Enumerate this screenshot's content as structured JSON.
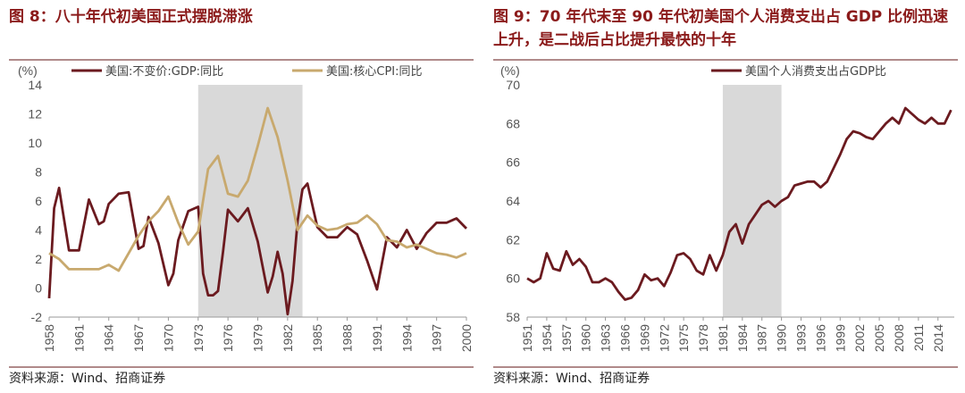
{
  "left": {
    "title": "图 8：八十年代初美国正式摆脱滞涨",
    "source": "资料来源：Wind、招商证券"
  },
  "right": {
    "title": "图 9：70 年代末至 90 年代初美国个人消费支出占 GDP 比例迅速上升，是二战后占比提升最快的十年",
    "source": "资料来源：Wind、招商证券"
  },
  "chart_data": [
    {
      "type": "line",
      "unit_label": "(%)",
      "ylim": [
        -2,
        14
      ],
      "yticks": [
        -2,
        0,
        2,
        4,
        6,
        8,
        10,
        12,
        14
      ],
      "xlim": [
        1958,
        2000
      ],
      "xticks": [
        "1958",
        "1961",
        "1964",
        "1967",
        "1970",
        "1973",
        "1976",
        "1979",
        "1982",
        "1985",
        "1988",
        "1991",
        "1994",
        "1997",
        "2000"
      ],
      "shaded_range": [
        1973,
        1983.5
      ],
      "legend_position": "top",
      "series": [
        {
          "name": "美国:不变价:GDP:同比",
          "color": "#6b1a1f",
          "x": [
            1958,
            1958.5,
            1959,
            1960,
            1960.5,
            1961,
            1962,
            1963,
            1963.5,
            1964,
            1965,
            1966,
            1967,
            1967.5,
            1968,
            1969,
            1970,
            1970.5,
            1971,
            1972,
            1973,
            1973.5,
            1974,
            1974.5,
            1975,
            1975.5,
            1976,
            1977,
            1978,
            1979,
            1980,
            1980.5,
            1981,
            1981.5,
            1982,
            1982.5,
            1983,
            1983.5,
            1984,
            1985,
            1986,
            1987,
            1988,
            1989,
            1990,
            1991,
            1992,
            1993,
            1994,
            1995,
            1996,
            1997,
            1998,
            1999,
            2000
          ],
          "y": [
            -0.7,
            5.5,
            6.9,
            2.6,
            2.6,
            2.6,
            6.1,
            4.4,
            4.6,
            5.8,
            6.5,
            6.6,
            2.7,
            2.9,
            4.9,
            3.1,
            0.2,
            1.0,
            3.3,
            5.3,
            5.6,
            1.0,
            -0.5,
            -0.5,
            -0.2,
            2.5,
            5.4,
            4.6,
            5.5,
            3.2,
            -0.3,
            0.8,
            2.5,
            1.0,
            -1.8,
            0.5,
            4.6,
            6.8,
            7.2,
            4.2,
            3.5,
            3.5,
            4.2,
            3.7,
            1.9,
            -0.1,
            3.5,
            2.8,
            4.0,
            2.7,
            3.8,
            4.5,
            4.5,
            4.8,
            4.1
          ]
        },
        {
          "name": "美国:核心CPI:同比",
          "color": "#c8a96e",
          "x": [
            1958,
            1959,
            1960,
            1961,
            1962,
            1963,
            1964,
            1965,
            1966,
            1967,
            1968,
            1969,
            1970,
            1971,
            1972,
            1973,
            1974,
            1975,
            1976,
            1977,
            1978,
            1979,
            1980,
            1981,
            1982,
            1983,
            1984,
            1985,
            1986,
            1987,
            1988,
            1989,
            1990,
            1991,
            1992,
            1993,
            1994,
            1995,
            1996,
            1997,
            1998,
            1999,
            2000
          ],
          "y": [
            2.4,
            2.0,
            1.3,
            1.3,
            1.3,
            1.3,
            1.6,
            1.2,
            2.4,
            3.6,
            4.6,
            5.3,
            6.3,
            4.5,
            3.0,
            3.9,
            8.2,
            9.1,
            6.5,
            6.3,
            7.4,
            9.8,
            12.4,
            10.4,
            7.4,
            4.0,
            5.0,
            4.3,
            4.0,
            4.1,
            4.4,
            4.5,
            5.0,
            4.4,
            3.3,
            3.2,
            2.8,
            3.0,
            2.7,
            2.4,
            2.3,
            2.1,
            2.4
          ]
        }
      ]
    },
    {
      "type": "line",
      "unit_label": "(%)",
      "ylim": [
        58,
        70
      ],
      "yticks": [
        58,
        60,
        62,
        64,
        66,
        68,
        70
      ],
      "xlim": [
        1951,
        2016.5
      ],
      "xticks": [
        "1951",
        "1954",
        "1957",
        "1960",
        "1963",
        "1966",
        "1969",
        "1972",
        "1975",
        "1978",
        "1981",
        "1984",
        "1987",
        "1990",
        "1993",
        "1996",
        "1999",
        "2002",
        "2005",
        "2008",
        "2011",
        "2014"
      ],
      "shaded_range": [
        1981,
        1990
      ],
      "legend_position": "top",
      "series": [
        {
          "name": "美国个人消费支出占GDP比",
          "color": "#6b1a1f",
          "x": [
            1951,
            1952,
            1953,
            1954,
            1955,
            1956,
            1957,
            1958,
            1959,
            1960,
            1961,
            1962,
            1963,
            1964,
            1965,
            1966,
            1967,
            1968,
            1969,
            1970,
            1971,
            1972,
            1973,
            1974,
            1975,
            1976,
            1977,
            1978,
            1979,
            1980,
            1981,
            1982,
            1983,
            1984,
            1985,
            1986,
            1987,
            1988,
            1989,
            1990,
            1991,
            1992,
            1993,
            1994,
            1995,
            1996,
            1997,
            1998,
            1999,
            2000,
            2001,
            2002,
            2003,
            2004,
            2005,
            2006,
            2007,
            2008,
            2009,
            2010,
            2011,
            2012,
            2013,
            2014,
            2015,
            2016
          ],
          "y": [
            60.0,
            59.8,
            60.0,
            61.3,
            60.5,
            60.4,
            61.4,
            60.7,
            61.0,
            60.6,
            59.8,
            59.8,
            60.0,
            59.8,
            59.3,
            58.9,
            59.0,
            59.4,
            60.2,
            59.9,
            60.0,
            59.6,
            60.3,
            61.2,
            61.3,
            61.0,
            60.4,
            60.2,
            61.2,
            60.4,
            61.2,
            62.4,
            62.8,
            61.8,
            62.8,
            63.3,
            63.8,
            64.0,
            63.7,
            64.0,
            64.2,
            64.8,
            64.9,
            65.0,
            65.0,
            64.7,
            65.0,
            65.7,
            66.4,
            67.2,
            67.6,
            67.5,
            67.3,
            67.2,
            67.6,
            68.0,
            68.3,
            68.0,
            68.8,
            68.5,
            68.2,
            68.0,
            68.3,
            68.0,
            68.0,
            68.7
          ]
        }
      ]
    }
  ]
}
